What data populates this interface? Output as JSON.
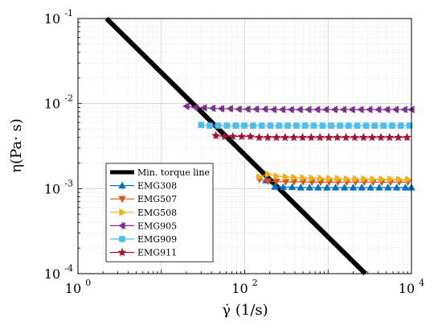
{
  "chart_data": {
    "type": "line",
    "x_scale": "log",
    "y_scale": "log",
    "xlim": [
      1,
      10000
    ],
    "ylim": [
      0.0001,
      0.1
    ],
    "grid": true,
    "legend_position": "bottom-left",
    "xlabel": "γ̇ (1/s)",
    "ylabel": "η(Pa· s)",
    "x_ticks": [
      {
        "base": "10",
        "exp": "0",
        "value": 1
      },
      {
        "base": "10",
        "exp": "2",
        "value": 100
      },
      {
        "base": "10",
        "exp": "4",
        "value": 10000
      }
    ],
    "y_ticks": [
      {
        "base": "10",
        "exp": "-4",
        "value": 0.0001
      },
      {
        "base": "10",
        "exp": "-3",
        "value": 0.001
      },
      {
        "base": "10",
        "exp": "-2",
        "value": 0.01
      },
      {
        "base": "10",
        "exp": "-1",
        "value": 0.1
      }
    ],
    "series": [
      {
        "name": "Min. torque line",
        "color": "#000000",
        "marker": "none",
        "x": [
          2.2,
          2800
        ],
        "y": [
          0.1,
          0.0001
        ]
      },
      {
        "name": "EMG308",
        "color": "#0072BD",
        "marker": "triangle-up",
        "x": [
          180,
          230,
          290,
          370,
          470,
          600,
          760,
          970,
          1230,
          1570,
          2000,
          2540,
          3230,
          4110,
          5230,
          6650,
          8460,
          10000
        ],
        "y": [
          0.00125,
          0.00105,
          0.00104,
          0.00104,
          0.00103,
          0.00103,
          0.00103,
          0.00103,
          0.00103,
          0.00103,
          0.00103,
          0.00103,
          0.00103,
          0.00103,
          0.00103,
          0.00103,
          0.00103,
          0.00103
        ]
      },
      {
        "name": "EMG507",
        "color": "#D95319",
        "marker": "triangle-down",
        "x": [
          150,
          190,
          240,
          310,
          390,
          500,
          640,
          810,
          1030,
          1310,
          1670,
          2130,
          2710,
          3450,
          4390,
          5590,
          7110,
          9050
        ],
        "y": [
          0.00128,
          0.00122,
          0.00121,
          0.0012,
          0.0012,
          0.0012,
          0.00119,
          0.00119,
          0.00119,
          0.00119,
          0.00119,
          0.00119,
          0.00119,
          0.00119,
          0.00119,
          0.00119,
          0.00119,
          0.00119
        ]
      },
      {
        "name": "EMG508",
        "color": "#EDB120",
        "marker": "triangle-right",
        "x": [
          150,
          190,
          240,
          310,
          390,
          500,
          640,
          810,
          1030,
          1310,
          1670,
          2130,
          2710,
          3450,
          4390,
          5590,
          7110,
          9050
        ],
        "y": [
          0.00137,
          0.00148,
          0.0014,
          0.00137,
          0.00135,
          0.00134,
          0.00133,
          0.00132,
          0.00131,
          0.00131,
          0.0013,
          0.0013,
          0.0013,
          0.00129,
          0.00129,
          0.00129,
          0.00128,
          0.00128
        ]
      },
      {
        "name": "EMG905",
        "color": "#7E2F8E",
        "marker": "triangle-left",
        "x": [
          20,
          25.5,
          32.4,
          41.2,
          52.4,
          66.7,
          84.8,
          108,
          137,
          175,
          222,
          283,
          360,
          458,
          582,
          741,
          942,
          1200,
          1530,
          1940,
          2470,
          3140,
          4000,
          5090,
          6470,
          8230,
          10000
        ],
        "y": [
          0.0093,
          0.009,
          0.0089,
          0.0088,
          0.0087,
          0.0087,
          0.0086,
          0.0086,
          0.0086,
          0.0086,
          0.0085,
          0.0085,
          0.0085,
          0.0085,
          0.0085,
          0.0085,
          0.0085,
          0.0085,
          0.0085,
          0.0085,
          0.0085,
          0.0085,
          0.0085,
          0.0085,
          0.0085,
          0.0085,
          0.0085
        ]
      },
      {
        "name": "EMG909",
        "color": "#4DBEEE",
        "marker": "square",
        "x": [
          30,
          38,
          48,
          61,
          78,
          99,
          126,
          160,
          203,
          258,
          328,
          417,
          530,
          674,
          857,
          1090,
          1390,
          1760,
          2240,
          2850,
          3620,
          4610,
          5860,
          7450,
          9470
        ],
        "y": [
          0.0056,
          0.0055,
          0.0055,
          0.0055,
          0.0055,
          0.0055,
          0.0055,
          0.0055,
          0.0055,
          0.0055,
          0.0055,
          0.0055,
          0.0055,
          0.0055,
          0.0055,
          0.0055,
          0.0055,
          0.0055,
          0.0055,
          0.0055,
          0.0055,
          0.0055,
          0.0055,
          0.0055,
          0.0055
        ]
      },
      {
        "name": "EMG911",
        "color": "#A2142F",
        "marker": "star",
        "x": [
          45,
          57,
          72,
          92,
          117,
          149,
          189,
          240,
          305,
          388,
          494,
          628,
          799,
          1020,
          1290,
          1640,
          2090,
          2660,
          3380,
          4300,
          5470,
          6960,
          8850
        ],
        "y": [
          0.0042,
          0.0041,
          0.0041,
          0.0041,
          0.0041,
          0.004,
          0.004,
          0.004,
          0.004,
          0.004,
          0.004,
          0.004,
          0.004,
          0.004,
          0.004,
          0.004,
          0.004,
          0.004,
          0.004,
          0.004,
          0.004,
          0.004,
          0.004
        ]
      }
    ]
  }
}
